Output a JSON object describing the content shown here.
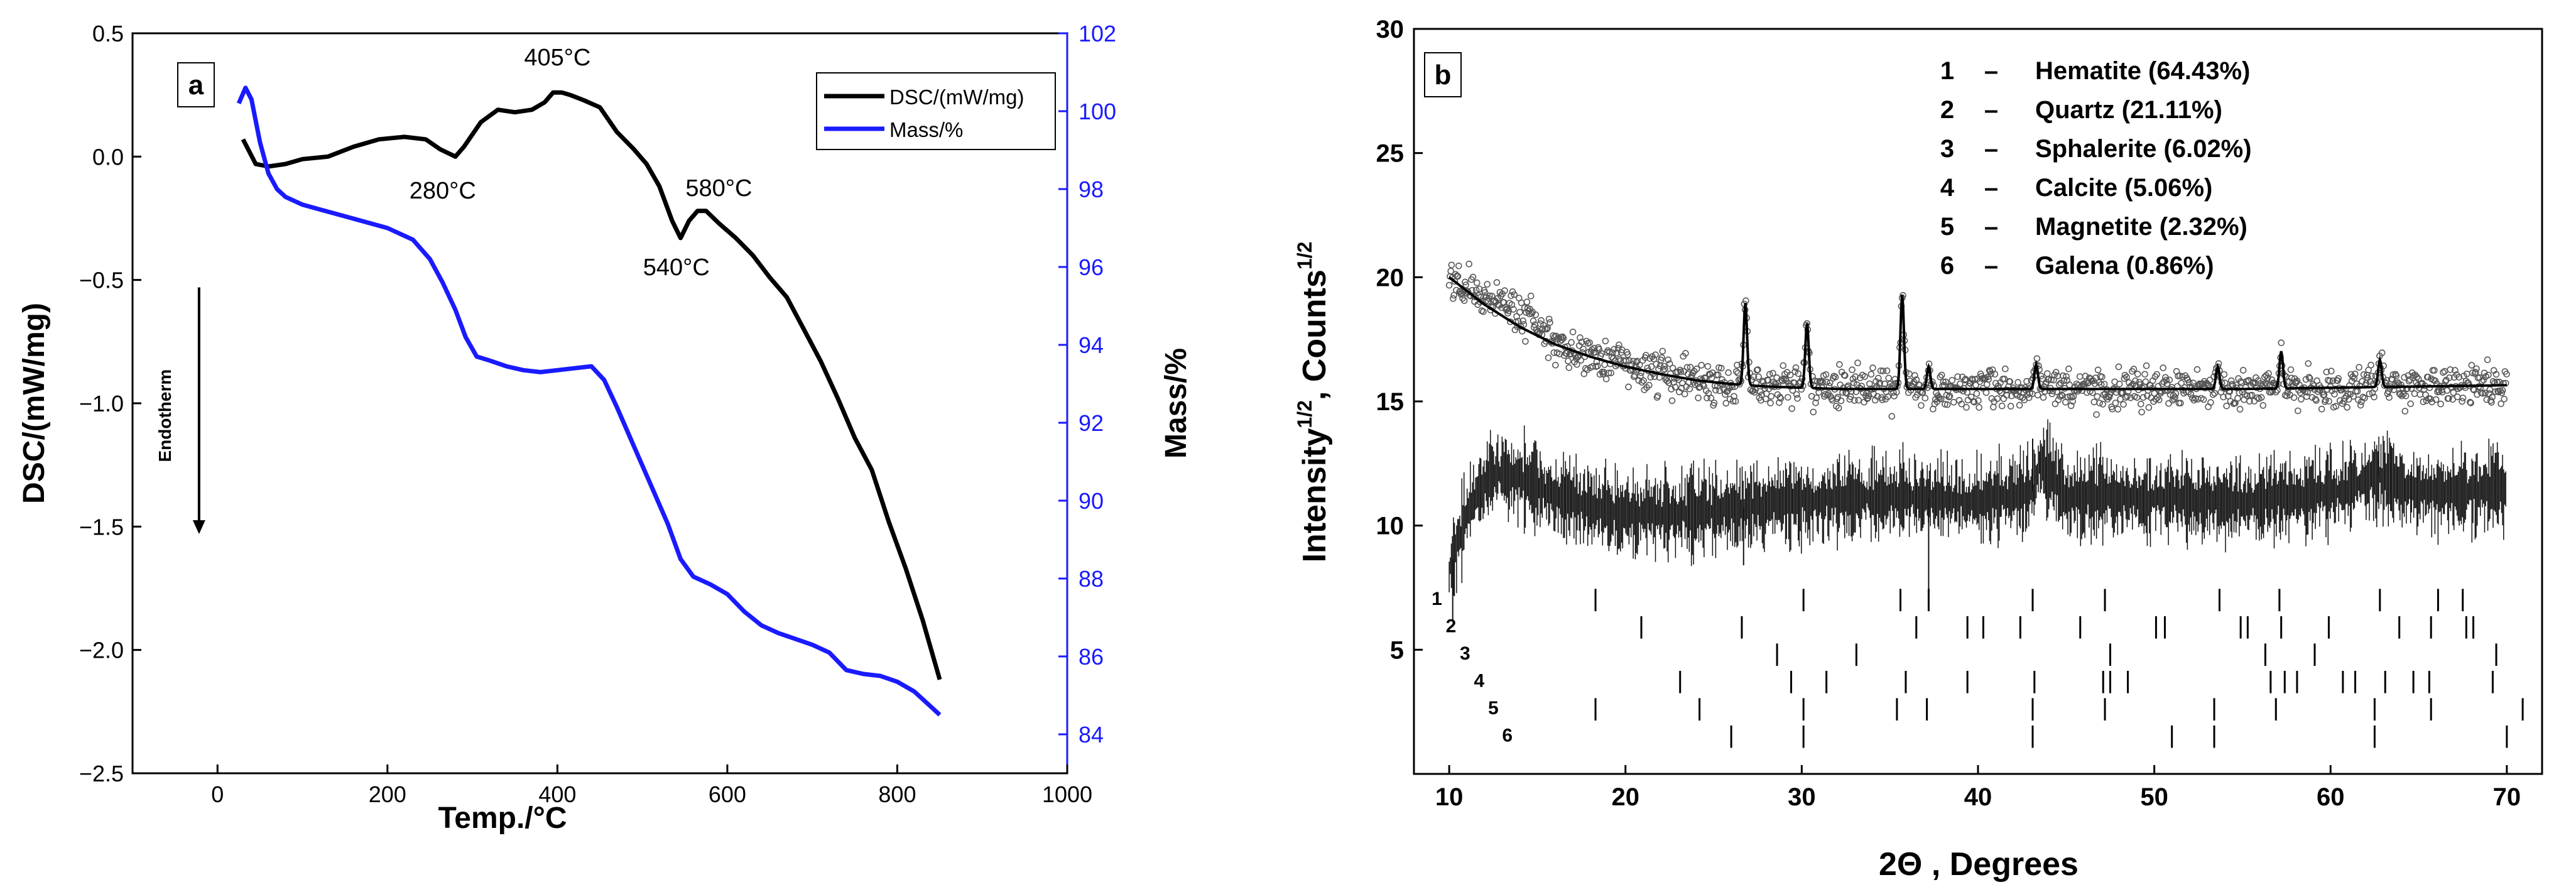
{
  "chart_data": [
    {
      "type": "line",
      "panel_label": "a",
      "xlabel": "Temp./°C",
      "ylabel": "DSC/(mW/mg)",
      "y2label": "Mass/%",
      "xlim": [
        -100,
        1000
      ],
      "ylim": [
        -2.5,
        0.5
      ],
      "y2lim": [
        83,
        102
      ],
      "xticks": [
        0,
        200,
        400,
        600,
        800,
        1000
      ],
      "yticks": [
        -2.5,
        -2.0,
        -1.5,
        -1.0,
        -0.5,
        0.0,
        0.5
      ],
      "y2ticks": [
        84,
        86,
        88,
        90,
        92,
        94,
        96,
        98,
        100,
        102
      ],
      "xtick_labels": [
        "0",
        "200",
        "400",
        "600",
        "800",
        "1000"
      ],
      "ytick_labels": [
        "−2.5",
        "−2.0",
        "−1.5",
        "−1.0",
        "−0.5",
        "0.0",
        "0.5"
      ],
      "y2tick_labels": [
        "84",
        "86",
        "88",
        "90",
        "92",
        "94",
        "96",
        "98",
        "100",
        "102"
      ],
      "legend_position": "top-right",
      "colors": {
        "dsc": "#000000",
        "mass": "#1a1aff"
      },
      "series": [
        {
          "name": "DSC/(mW/mg)",
          "axis": "left",
          "x": [
            30,
            45,
            60,
            80,
            100,
            130,
            160,
            190,
            220,
            245,
            262,
            280,
            290,
            310,
            330,
            350,
            370,
            385,
            395,
            405,
            415,
            430,
            450,
            470,
            490,
            505,
            520,
            535,
            545,
            555,
            565,
            575,
            590,
            610,
            630,
            650,
            670,
            690,
            710,
            730,
            750,
            770,
            790,
            810,
            830,
            850
          ],
          "values": [
            0.07,
            -0.03,
            -0.04,
            -0.03,
            -0.01,
            0.0,
            0.04,
            0.07,
            0.08,
            0.07,
            0.03,
            0.0,
            0.04,
            0.14,
            0.19,
            0.18,
            0.19,
            0.22,
            0.26,
            0.26,
            0.25,
            0.23,
            0.2,
            0.1,
            0.03,
            -0.03,
            -0.12,
            -0.26,
            -0.33,
            -0.26,
            -0.22,
            -0.22,
            -0.27,
            -0.33,
            -0.4,
            -0.49,
            -0.57,
            -0.7,
            -0.83,
            -0.98,
            -1.14,
            -1.27,
            -1.48,
            -1.67,
            -1.88,
            -2.12
          ]
        },
        {
          "name": "Mass/%",
          "axis": "right",
          "x": [
            25,
            33,
            40,
            50,
            60,
            70,
            80,
            100,
            150,
            200,
            230,
            250,
            265,
            280,
            292,
            305,
            320,
            340,
            360,
            380,
            400,
            420,
            440,
            455,
            470,
            490,
            510,
            530,
            545,
            560,
            580,
            600,
            620,
            640,
            660,
            680,
            700,
            720,
            740,
            760,
            780,
            800,
            820,
            840,
            850
          ],
          "values": [
            100.2,
            100.6,
            100.3,
            99.2,
            98.4,
            98.0,
            97.8,
            97.6,
            97.3,
            97.0,
            96.7,
            96.2,
            95.6,
            94.9,
            94.2,
            93.7,
            93.6,
            93.45,
            93.35,
            93.3,
            93.35,
            93.4,
            93.45,
            93.1,
            92.4,
            91.4,
            90.4,
            89.4,
            88.5,
            88.05,
            87.85,
            87.6,
            87.15,
            86.8,
            86.6,
            86.45,
            86.3,
            86.1,
            85.65,
            85.55,
            85.5,
            85.35,
            85.1,
            84.7,
            84.5
          ]
        }
      ],
      "annotations": [
        {
          "text": "405°C",
          "x": 400,
          "y": 0.37
        },
        {
          "text": "280°C",
          "x": 265,
          "y": -0.17
        },
        {
          "text": "580°C",
          "x": 590,
          "y": -0.16
        },
        {
          "text": "540°C",
          "x": 540,
          "y": -0.48
        },
        {
          "text": "Endotherm",
          "x": -55,
          "y": -1.05
        }
      ]
    },
    {
      "type": "scatter",
      "panel_label": "b",
      "xlabel": "2Θ , Degrees",
      "ylabel": "Intensity^1/2, Counts^1/2",
      "xlim": [
        8,
        72
      ],
      "ylim": [
        0,
        30
      ],
      "xticks": [
        10,
        20,
        30,
        40,
        50,
        60,
        70
      ],
      "yticks": [
        5,
        10,
        15,
        20,
        25,
        30
      ],
      "xtick_labels": [
        "10",
        "20",
        "30",
        "40",
        "50",
        "60",
        "70"
      ],
      "ytick_labels": [
        "5",
        "10",
        "15",
        "20",
        "25",
        "30"
      ],
      "legend": [
        {
          "num": "1",
          "dash": "–",
          "text": "Hematite (64.43%)"
        },
        {
          "num": "2",
          "dash": "–",
          "text": "Quartz (21.11%)"
        },
        {
          "num": "3",
          "dash": "–",
          "text": "Sphalerite (6.02%)"
        },
        {
          "num": "4",
          "dash": "–",
          "text": "Calcite (5.06%)"
        },
        {
          "num": "5",
          "dash": "–",
          "text": "Magnetite (2.32%)"
        },
        {
          "num": "6",
          "dash": "–",
          "text": "Galena (0.86%)"
        }
      ],
      "calculated_profile": {
        "x": [
          10,
          12,
          14,
          16,
          18,
          20,
          22,
          24,
          26,
          28,
          30,
          32,
          34,
          36,
          40,
          45,
          50,
          55,
          60,
          65,
          70
        ],
        "values": [
          20.0,
          18.9,
          18.0,
          17.3,
          16.8,
          16.4,
          16.1,
          15.85,
          15.7,
          15.6,
          15.55,
          15.5,
          15.5,
          15.5,
          15.5,
          15.5,
          15.5,
          15.5,
          15.55,
          15.6,
          15.65
        ]
      },
      "peaks": [
        {
          "x": 26.8,
          "height": 3.3
        },
        {
          "x": 30.3,
          "height": 2.6
        },
        {
          "x": 35.7,
          "height": 3.8
        },
        {
          "x": 37.2,
          "height": 0.9
        },
        {
          "x": 43.3,
          "height": 1.0
        },
        {
          "x": 53.6,
          "height": 0.9
        },
        {
          "x": 57.2,
          "height": 1.5
        },
        {
          "x": 62.8,
          "height": 1.1
        }
      ],
      "difference_profile": {
        "x": [
          10,
          11,
          12,
          13,
          14,
          16,
          20,
          25,
          30,
          35,
          40,
          43.2,
          43.5,
          45,
          50,
          55,
          60,
          62.8,
          65,
          70
        ],
        "values": [
          8.2,
          10.5,
          11.8,
          12.2,
          11.9,
          11.2,
          10.4,
          10.6,
          11.0,
          11.2,
          11.0,
          11.4,
          12.6,
          11.2,
          11.1,
          11.0,
          11.3,
          12.0,
          11.3,
          11.5
        ]
      },
      "phase_reflections": [
        {
          "label": "1",
          "positions": [
            18.3,
            30.1,
            35.6,
            37.2,
            43.1,
            47.2,
            53.7,
            57.1,
            62.8,
            66.1,
            67.5
          ]
        },
        {
          "label": "2",
          "positions": [
            20.9,
            26.6,
            36.5,
            39.4,
            40.3,
            42.4,
            45.8,
            50.1,
            50.6,
            54.9,
            55.3,
            57.2,
            59.9,
            63.9,
            65.7,
            67.7,
            68.1
          ]
        },
        {
          "label": "3",
          "positions": [
            28.6,
            33.1,
            47.5,
            56.3,
            59.1,
            69.4
          ]
        },
        {
          "label": "4",
          "positions": [
            23.1,
            29.4,
            31.4,
            35.9,
            39.4,
            43.2,
            47.1,
            47.5,
            48.5,
            56.6,
            57.4,
            58.1,
            60.7,
            61.4,
            63.1,
            64.7,
            65.6,
            69.2
          ]
        },
        {
          "label": "5",
          "positions": [
            18.3,
            24.2,
            30.1,
            35.4,
            37.1,
            43.1,
            47.2,
            53.4,
            56.9,
            62.5,
            65.7,
            70.9
          ]
        },
        {
          "label": "6",
          "positions": [
            26.0,
            30.1,
            43.1,
            51.0,
            53.4,
            62.5,
            70.0
          ]
        }
      ]
    }
  ]
}
